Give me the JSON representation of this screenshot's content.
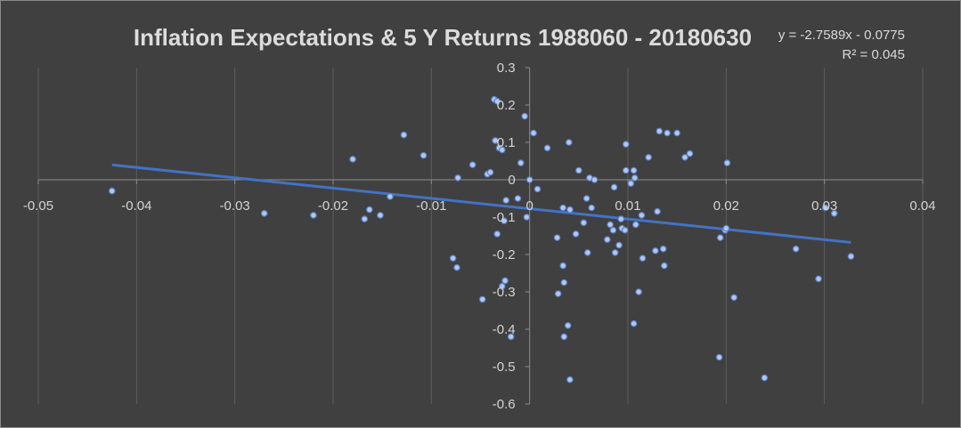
{
  "chart_data": {
    "type": "scatter",
    "title": "Inflation Expectations & 5 Y Returns 1988060 - 20180630",
    "xlabel": "",
    "ylabel": "",
    "xlim": [
      -0.05,
      0.04
    ],
    "ylim": [
      -0.6,
      0.3
    ],
    "x_ticks": [
      -0.05,
      -0.04,
      -0.03,
      -0.02,
      -0.01,
      0,
      0.01,
      0.02,
      0.03,
      0.04
    ],
    "x_tick_labels": [
      "-0.05",
      "-0.04",
      "-0.03",
      "-0.02",
      "-0.01",
      "0",
      "0.01",
      "0.02",
      "0.03",
      "0.04"
    ],
    "y_ticks": [
      0.3,
      0.2,
      0.1,
      0,
      -0.1,
      -0.2,
      -0.3,
      -0.4,
      -0.5,
      -0.6
    ],
    "y_tick_labels": [
      "0.3",
      "0.2",
      "0.1",
      "0",
      "-0.1",
      "-0.2",
      "-0.3",
      "-0.4",
      "-0.5",
      "-0.6"
    ],
    "grid": "vertical",
    "legend": "none",
    "trendline": {
      "slope": -2.7589,
      "intercept": -0.0775,
      "equation": "y = -2.7589x - 0.0775",
      "r_squared": "R² = 0.045",
      "color": "#4472c4"
    },
    "marker_color": "#b4c7ec",
    "points": [
      {
        "x": -0.0425,
        "y": -0.03
      },
      {
        "x": -0.027,
        "y": -0.09
      },
      {
        "x": -0.022,
        "y": -0.095
      },
      {
        "x": -0.018,
        "y": 0.055
      },
      {
        "x": -0.0168,
        "y": -0.105
      },
      {
        "x": -0.0163,
        "y": -0.08
      },
      {
        "x": -0.0152,
        "y": -0.095
      },
      {
        "x": -0.0142,
        "y": -0.045
      },
      {
        "x": -0.0128,
        "y": 0.12
      },
      {
        "x": -0.0108,
        "y": 0.065
      },
      {
        "x": -0.0078,
        "y": -0.21
      },
      {
        "x": -0.0074,
        "y": -0.235
      },
      {
        "x": -0.0073,
        "y": 0.005
      },
      {
        "x": -0.0058,
        "y": 0.04
      },
      {
        "x": -0.0048,
        "y": -0.32
      },
      {
        "x": -0.0043,
        "y": 0.015
      },
      {
        "x": -0.004,
        "y": 0.02
      },
      {
        "x": -0.0036,
        "y": 0.215
      },
      {
        "x": -0.0033,
        "y": 0.21
      },
      {
        "x": -0.0035,
        "y": 0.105
      },
      {
        "x": -0.0031,
        "y": 0.085
      },
      {
        "x": -0.0028,
        "y": 0.08
      },
      {
        "x": -0.0033,
        "y": -0.145
      },
      {
        "x": -0.0026,
        "y": -0.11
      },
      {
        "x": -0.0024,
        "y": -0.055
      },
      {
        "x": -0.0028,
        "y": -0.285
      },
      {
        "x": -0.0025,
        "y": -0.27
      },
      {
        "x": -0.0019,
        "y": -0.42
      },
      {
        "x": -0.0012,
        "y": -0.05
      },
      {
        "x": -0.0009,
        "y": 0.045
      },
      {
        "x": -0.0005,
        "y": 0.17
      },
      {
        "x": -0.0003,
        "y": -0.1
      },
      {
        "x": 0.0,
        "y": 0.0
      },
      {
        "x": 0.0004,
        "y": 0.125
      },
      {
        "x": 0.0008,
        "y": -0.025
      },
      {
        "x": 0.0018,
        "y": 0.085
      },
      {
        "x": 0.0028,
        "y": -0.155
      },
      {
        "x": 0.0029,
        "y": -0.305
      },
      {
        "x": 0.0034,
        "y": -0.23
      },
      {
        "x": 0.0034,
        "y": -0.075
      },
      {
        "x": 0.0035,
        "y": -0.275
      },
      {
        "x": 0.0035,
        "y": -0.42
      },
      {
        "x": 0.0039,
        "y": -0.39
      },
      {
        "x": 0.004,
        "y": 0.1
      },
      {
        "x": 0.0041,
        "y": -0.08
      },
      {
        "x": 0.0041,
        "y": -0.535
      },
      {
        "x": 0.0047,
        "y": -0.145
      },
      {
        "x": 0.005,
        "y": 0.025
      },
      {
        "x": 0.0055,
        "y": -0.115
      },
      {
        "x": 0.0058,
        "y": -0.05
      },
      {
        "x": 0.0059,
        "y": -0.195
      },
      {
        "x": 0.0061,
        "y": 0.005
      },
      {
        "x": 0.0063,
        "y": -0.075
      },
      {
        "x": 0.0066,
        "y": 0.0
      },
      {
        "x": 0.0079,
        "y": -0.16
      },
      {
        "x": 0.0082,
        "y": -0.12
      },
      {
        "x": 0.0085,
        "y": -0.135
      },
      {
        "x": 0.0086,
        "y": -0.02
      },
      {
        "x": 0.0087,
        "y": -0.195
      },
      {
        "x": 0.0091,
        "y": -0.175
      },
      {
        "x": 0.0093,
        "y": -0.105
      },
      {
        "x": 0.0094,
        "y": -0.13
      },
      {
        "x": 0.0097,
        "y": -0.135
      },
      {
        "x": 0.0098,
        "y": 0.025
      },
      {
        "x": 0.0098,
        "y": 0.095
      },
      {
        "x": 0.0103,
        "y": -0.01
      },
      {
        "x": 0.0106,
        "y": -0.385
      },
      {
        "x": 0.0106,
        "y": 0.025
      },
      {
        "x": 0.0107,
        "y": 0.005
      },
      {
        "x": 0.0108,
        "y": -0.12
      },
      {
        "x": 0.0111,
        "y": -0.3
      },
      {
        "x": 0.0114,
        "y": -0.095
      },
      {
        "x": 0.0115,
        "y": -0.21
      },
      {
        "x": 0.0121,
        "y": 0.06
      },
      {
        "x": 0.0128,
        "y": -0.19
      },
      {
        "x": 0.013,
        "y": -0.085
      },
      {
        "x": 0.0132,
        "y": 0.13
      },
      {
        "x": 0.0136,
        "y": -0.185
      },
      {
        "x": 0.0137,
        "y": -0.23
      },
      {
        "x": 0.014,
        "y": 0.125
      },
      {
        "x": 0.015,
        "y": 0.125
      },
      {
        "x": 0.0158,
        "y": 0.06
      },
      {
        "x": 0.0163,
        "y": 0.07
      },
      {
        "x": 0.0193,
        "y": -0.475
      },
      {
        "x": 0.0194,
        "y": -0.155
      },
      {
        "x": 0.0199,
        "y": -0.135
      },
      {
        "x": 0.02,
        "y": -0.13
      },
      {
        "x": 0.0201,
        "y": 0.045
      },
      {
        "x": 0.0208,
        "y": -0.315
      },
      {
        "x": 0.0239,
        "y": -0.53
      },
      {
        "x": 0.0271,
        "y": -0.185
      },
      {
        "x": 0.0294,
        "y": -0.265
      },
      {
        "x": 0.0301,
        "y": -0.075
      },
      {
        "x": 0.031,
        "y": -0.09
      },
      {
        "x": 0.0327,
        "y": -0.205
      }
    ]
  }
}
